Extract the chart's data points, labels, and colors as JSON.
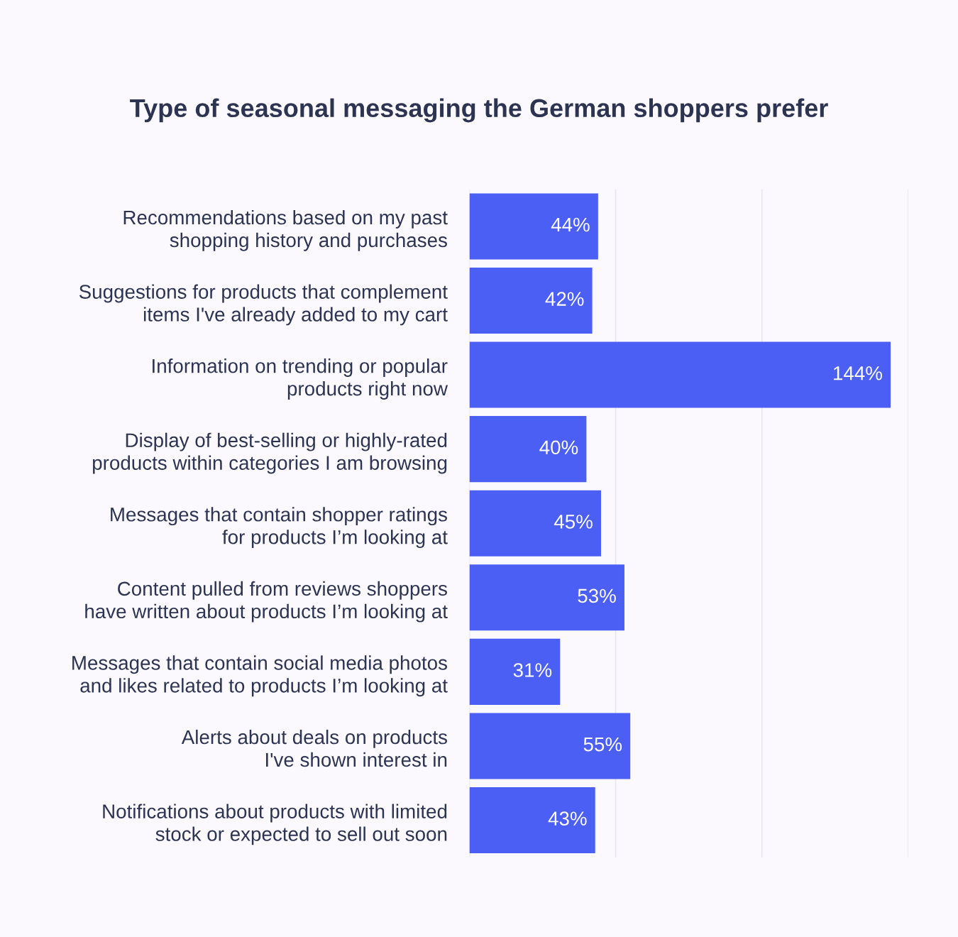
{
  "chart_data": {
    "type": "bar",
    "orientation": "horizontal",
    "title": "Type of seasonal messaging the German shoppers prefer",
    "categories": [
      "Recommendations based on my past\nshopping history and purchases",
      "Suggestions for products that complement\nitems I've already added to my cart",
      "Information on trending or popular\nproducts right now",
      "Display of best-selling or highly-rated\nproducts within categories I am browsing",
      "Messages that contain shopper ratings\nfor products I’m looking at",
      "Content pulled from reviews shoppers\nhave written about products I’m looking at",
      "Messages that contain social media photos\nand likes related to products I’m looking at",
      "Alerts about deals on products\nI've shown interest in",
      "Notifications about products with limited\nstock or expected to sell out soon"
    ],
    "values": [
      44,
      42,
      144,
      40,
      45,
      53,
      31,
      55,
      43
    ],
    "value_labels": [
      "44%",
      "42%",
      "144%",
      "40%",
      "45%",
      "53%",
      "31%",
      "55%",
      "43%"
    ],
    "color": "#4b5ff5",
    "xlim": [
      0,
      150
    ],
    "xticks": [
      {
        "value": 0,
        "label": null
      },
      {
        "value": 50,
        "label": null
      },
      {
        "value": 100,
        "label": null
      },
      {
        "value": 150,
        "label": null
      }
    ],
    "grid": "x",
    "tick_labels": "y"
  }
}
